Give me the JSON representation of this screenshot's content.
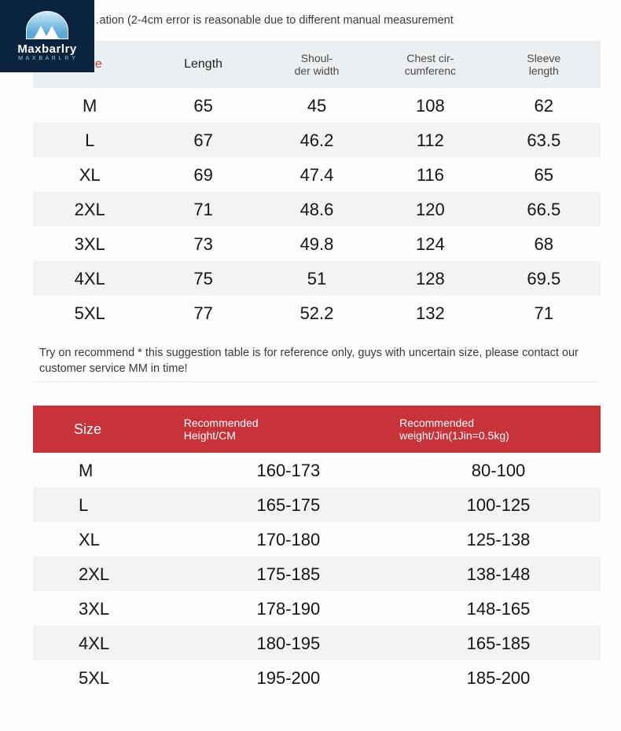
{
  "logo": {
    "brand": "Maxbarlry",
    "sub": "M A X B A R L R Y"
  },
  "topNote": "…ation (2-4cm error is reasonable due to different manual measurement",
  "colors": {
    "headerGray": "#eceff2",
    "rowAlt": "#f1f3f5",
    "headerRed": "#c8333a",
    "sizeLabelRed": "#d04040",
    "logoBg": "#0a2440"
  },
  "table1": {
    "headers": [
      "Size",
      "Length",
      "Shoul-\nder width",
      "Chest cir-\ncumferenc",
      "Sleeve\nlength"
    ],
    "rows": [
      [
        "M",
        "65",
        "45",
        "108",
        "62"
      ],
      [
        "L",
        "67",
        "46.2",
        "112",
        "63.5"
      ],
      [
        "XL",
        "69",
        "47.4",
        "116",
        "65"
      ],
      [
        "2XL",
        "71",
        "48.6",
        "120",
        "66.5"
      ],
      [
        "3XL",
        "73",
        "49.8",
        "124",
        "68"
      ],
      [
        "4XL",
        "75",
        "51",
        "128",
        "69.5"
      ],
      [
        "5XL",
        "77",
        "52.2",
        "132",
        "71"
      ]
    ]
  },
  "recoNote": "Try on recommend * this suggestion table is for reference only, guys with uncertain size, please contact our customer service MM in time!",
  "table2": {
    "headers": [
      "Size",
      "Recommended\nHeight/CM",
      "Recommended\nweight/Jin(1Jin=0.5kg)"
    ],
    "rows": [
      [
        "M",
        "160-173",
        "80-100"
      ],
      [
        "L",
        "165-175",
        "100-125"
      ],
      [
        "XL",
        "170-180",
        "125-138"
      ],
      [
        "2XL",
        "175-185",
        "138-148"
      ],
      [
        "3XL",
        "178-190",
        "148-165"
      ],
      [
        "4XL",
        "180-195",
        "165-185"
      ],
      [
        "5XL",
        "195-200",
        "185-200"
      ]
    ]
  }
}
